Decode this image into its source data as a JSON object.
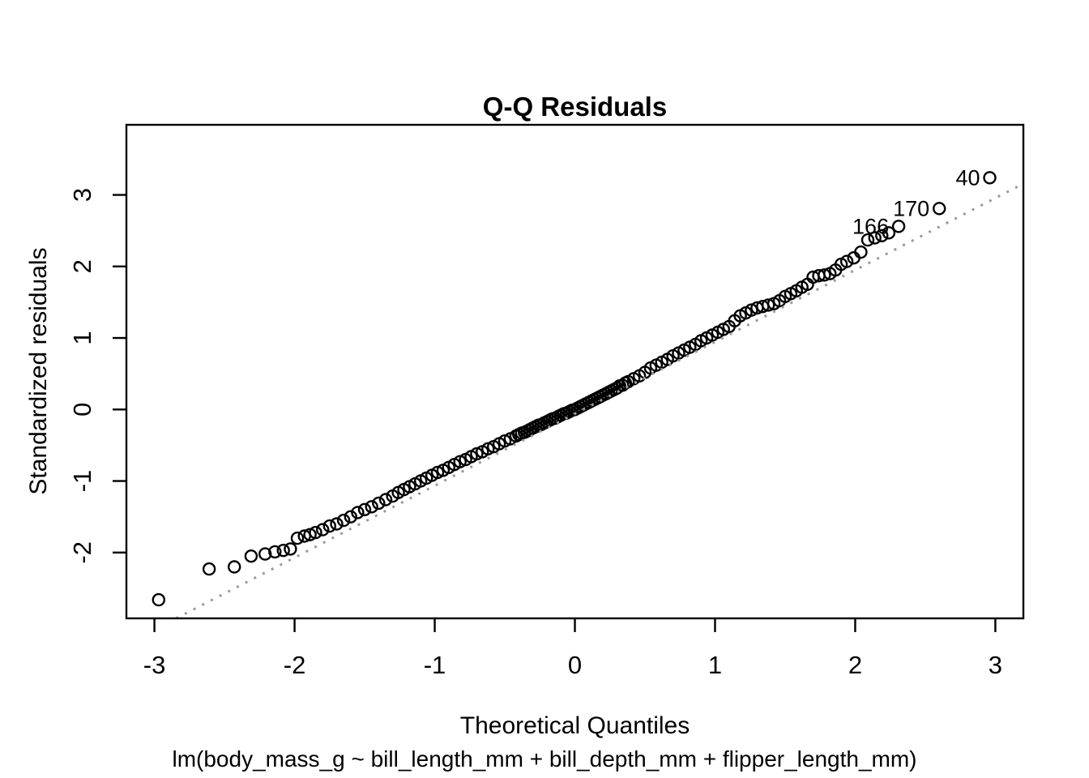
{
  "chart_data": {
    "type": "scatter",
    "title": "Q-Q Residuals",
    "xlabel": "Theoretical Quantiles",
    "ylabel": "Standardized residuals",
    "subtitle": "lm(body_mass_g ~ bill_length_mm + bill_depth_mm + flipper_length_mm)",
    "xlim": [
      -3.2,
      3.2
    ],
    "ylim": [
      -2.92,
      3.98
    ],
    "x_ticks": [
      -3,
      -2,
      -1,
      0,
      1,
      2,
      3
    ],
    "y_ticks": [
      -2,
      -1,
      0,
      1,
      2,
      3
    ],
    "grid": false,
    "legend": "none",
    "ref_line": {
      "slope": 1.005,
      "intercept": -0.06,
      "style": "dotted",
      "color": "#9a9a9a"
    },
    "marker": {
      "shape": "open-circle",
      "radius_px": 7,
      "color": "#000000",
      "stroke_width": 2.4
    },
    "labeled_points": [
      {
        "label": "40",
        "x": 2.96,
        "y": 3.24
      },
      {
        "label": "170",
        "x": 2.6,
        "y": 2.81
      },
      {
        "label": "166",
        "x": 2.31,
        "y": 2.56
      }
    ],
    "points": [
      [
        -2.97,
        -2.66
      ],
      [
        -2.61,
        -2.23
      ],
      [
        -2.43,
        -2.2
      ],
      [
        -2.31,
        -2.05
      ],
      [
        -2.21,
        -2.02
      ],
      [
        -2.14,
        -1.99
      ],
      [
        -2.08,
        -1.97
      ],
      [
        -2.03,
        -1.95
      ],
      [
        -1.98,
        -1.8
      ],
      [
        -1.93,
        -1.77
      ],
      [
        -1.89,
        -1.75
      ],
      [
        -1.85,
        -1.72
      ],
      [
        -1.8,
        -1.68
      ],
      [
        -1.75,
        -1.63
      ],
      [
        -1.7,
        -1.6
      ],
      [
        -1.65,
        -1.55
      ],
      [
        -1.6,
        -1.5
      ],
      [
        -1.55,
        -1.44
      ],
      [
        -1.5,
        -1.4
      ],
      [
        -1.45,
        -1.36
      ],
      [
        -1.4,
        -1.31
      ],
      [
        -1.35,
        -1.26
      ],
      [
        -1.3,
        -1.21
      ],
      [
        -1.26,
        -1.16
      ],
      [
        -1.22,
        -1.12
      ],
      [
        -1.18,
        -1.08
      ],
      [
        -1.14,
        -1.04
      ],
      [
        -1.1,
        -1.0
      ],
      [
        -1.06,
        -0.96
      ],
      [
        -1.02,
        -0.92
      ],
      [
        -0.98,
        -0.88
      ],
      [
        -0.94,
        -0.85
      ],
      [
        -0.9,
        -0.81
      ],
      [
        -0.86,
        -0.77
      ],
      [
        -0.82,
        -0.73
      ],
      [
        -0.78,
        -0.7
      ],
      [
        -0.74,
        -0.66
      ],
      [
        -0.7,
        -0.62
      ],
      [
        -0.66,
        -0.59
      ],
      [
        -0.62,
        -0.55
      ],
      [
        -0.58,
        -0.52
      ],
      [
        -0.54,
        -0.48
      ],
      [
        -0.5,
        -0.44
      ],
      [
        -0.46,
        -0.41
      ],
      [
        -0.42,
        -0.37
      ],
      [
        -0.38,
        -0.33
      ],
      [
        -0.34,
        -0.3
      ],
      [
        -0.3,
        -0.26
      ],
      [
        -0.26,
        -0.22
      ],
      [
        -0.22,
        -0.19
      ],
      [
        -0.18,
        -0.15
      ],
      [
        -0.14,
        -0.12
      ],
      [
        -0.1,
        -0.08
      ],
      [
        -0.06,
        -0.05
      ],
      [
        -0.02,
        -0.01
      ],
      [
        -0.4,
        -0.35
      ],
      [
        -0.36,
        -0.32
      ],
      [
        -0.32,
        -0.28
      ],
      [
        -0.28,
        -0.24
      ],
      [
        -0.24,
        -0.21
      ],
      [
        -0.2,
        -0.17
      ],
      [
        -0.16,
        -0.13
      ],
      [
        -0.12,
        -0.1
      ],
      [
        -0.08,
        -0.06
      ],
      [
        -0.04,
        -0.03
      ],
      [
        0.0,
        0.0
      ],
      [
        0.04,
        0.04
      ],
      [
        0.08,
        0.08
      ],
      [
        0.12,
        0.12
      ],
      [
        0.16,
        0.16
      ],
      [
        0.2,
        0.2
      ],
      [
        0.24,
        0.24
      ],
      [
        0.28,
        0.28
      ],
      [
        0.32,
        0.33
      ],
      [
        0.36,
        0.37
      ],
      [
        0.02,
        0.02
      ],
      [
        0.06,
        0.06
      ],
      [
        0.1,
        0.1
      ],
      [
        0.14,
        0.14
      ],
      [
        0.18,
        0.18
      ],
      [
        0.22,
        0.22
      ],
      [
        0.26,
        0.26
      ],
      [
        0.3,
        0.3
      ],
      [
        0.34,
        0.34
      ],
      [
        0.38,
        0.39
      ],
      [
        0.42,
        0.43
      ],
      [
        0.46,
        0.47
      ],
      [
        0.5,
        0.52
      ],
      [
        0.54,
        0.58
      ],
      [
        0.58,
        0.62
      ],
      [
        0.62,
        0.66
      ],
      [
        0.66,
        0.7
      ],
      [
        0.7,
        0.75
      ],
      [
        0.74,
        0.79
      ],
      [
        0.78,
        0.83
      ],
      [
        0.82,
        0.87
      ],
      [
        0.86,
        0.91
      ],
      [
        0.9,
        0.96
      ],
      [
        0.94,
        1.0
      ],
      [
        0.98,
        1.04
      ],
      [
        1.02,
        1.08
      ],
      [
        1.06,
        1.12
      ],
      [
        1.1,
        1.16
      ],
      [
        1.14,
        1.24
      ],
      [
        1.18,
        1.31
      ],
      [
        1.22,
        1.35
      ],
      [
        1.26,
        1.39
      ],
      [
        1.3,
        1.42
      ],
      [
        1.34,
        1.44
      ],
      [
        1.38,
        1.46
      ],
      [
        1.42,
        1.48
      ],
      [
        1.46,
        1.52
      ],
      [
        1.5,
        1.58
      ],
      [
        1.54,
        1.62
      ],
      [
        1.58,
        1.66
      ],
      [
        1.62,
        1.71
      ],
      [
        1.66,
        1.75
      ],
      [
        1.7,
        1.85
      ],
      [
        1.74,
        1.87
      ],
      [
        1.78,
        1.88
      ],
      [
        1.82,
        1.9
      ],
      [
        1.86,
        1.95
      ],
      [
        1.9,
        2.03
      ],
      [
        1.94,
        2.07
      ],
      [
        1.99,
        2.12
      ],
      [
        2.04,
        2.2
      ],
      [
        2.09,
        2.37
      ],
      [
        2.14,
        2.4
      ],
      [
        2.19,
        2.43
      ],
      [
        2.24,
        2.47
      ]
    ]
  },
  "colors": {
    "foreground": "#000000",
    "background": "#ffffff",
    "ref_line": "#9a9a9a"
  }
}
